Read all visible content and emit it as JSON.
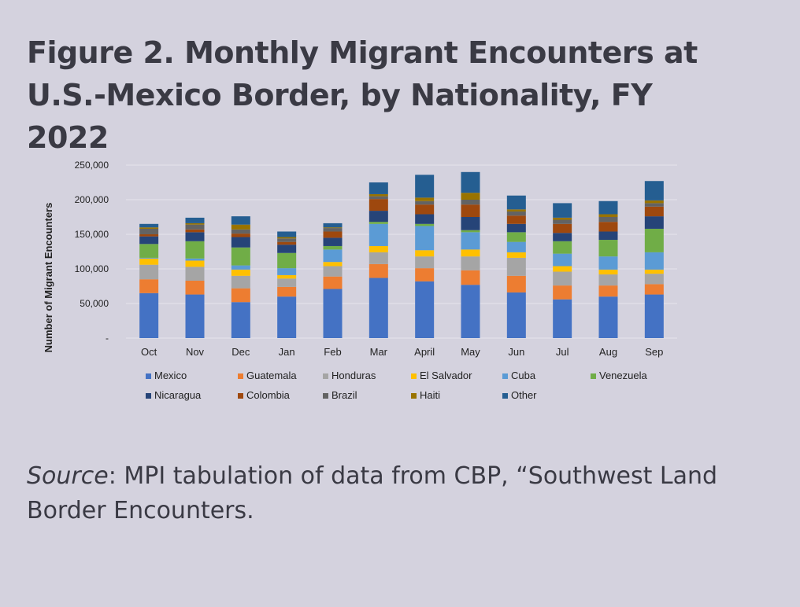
{
  "title": "Figure 2. Monthly Migrant Encounters at U.S.-Mexico Border, by Nationality, FY 2022",
  "source": {
    "label": "Source",
    "text": ": MPI tabulation of data from CBP, “Southwest Land Border Encounters."
  },
  "chart_data": {
    "type": "bar",
    "stacked": true,
    "ylabel": "Number of Migrant Encounters",
    "xlabel": "",
    "ylim": [
      0,
      250000
    ],
    "yticks": [
      0,
      50000,
      100000,
      150000,
      200000,
      250000
    ],
    "ytick_labels": [
      "-",
      "50,000",
      "100,000",
      "150,000",
      "200,000",
      "250,000"
    ],
    "grid": true,
    "legend_position": "bottom",
    "categories": [
      "Oct",
      "Nov",
      "Dec",
      "Jan",
      "Feb",
      "Mar",
      "April",
      "May",
      "Jun",
      "Jul",
      "Aug",
      "Sep"
    ],
    "series": [
      {
        "name": "Mexico",
        "color": "#4472c4",
        "values": [
          65000,
          63000,
          52000,
          60000,
          71000,
          87000,
          82000,
          77000,
          66000,
          56000,
          60000,
          63000
        ]
      },
      {
        "name": "Guatemala",
        "color": "#ed7d31",
        "values": [
          20000,
          20000,
          20000,
          14000,
          18000,
          20000,
          19000,
          21000,
          24000,
          20000,
          16000,
          15000
        ]
      },
      {
        "name": "Honduras",
        "color": "#a5a5a5",
        "values": [
          21000,
          20000,
          18000,
          12000,
          15000,
          17000,
          17000,
          20000,
          26000,
          20000,
          16000,
          15000
        ]
      },
      {
        "name": "El Salvador",
        "color": "#ffc000",
        "values": [
          9000,
          9000,
          9000,
          5000,
          6000,
          9000,
          9000,
          10000,
          8000,
          8000,
          7000,
          6000
        ]
      },
      {
        "name": "Cuba",
        "color": "#5b9bd5",
        "values": [
          1000,
          3000,
          6000,
          10000,
          18000,
          32000,
          35000,
          25000,
          15000,
          18000,
          19000,
          25000
        ]
      },
      {
        "name": "Venezuela",
        "color": "#70ad47",
        "values": [
          20000,
          25000,
          26000,
          22000,
          5000,
          3000,
          3000,
          3000,
          14000,
          18000,
          24000,
          34000
        ]
      },
      {
        "name": "Nicaragua",
        "color": "#264478",
        "values": [
          11000,
          13000,
          15000,
          12000,
          12000,
          16000,
          14000,
          19000,
          12000,
          12000,
          12000,
          18000
        ]
      },
      {
        "name": "Colombia",
        "color": "#9e480e",
        "values": [
          3000,
          4000,
          5000,
          4000,
          9000,
          17000,
          14000,
          18000,
          12000,
          13000,
          14000,
          14000
        ]
      },
      {
        "name": "Brazil",
        "color": "#636363",
        "values": [
          8000,
          7000,
          6000,
          5000,
          5000,
          4000,
          5000,
          7000,
          6000,
          6000,
          7000,
          5000
        ]
      },
      {
        "name": "Haiti",
        "color": "#997300",
        "values": [
          2000,
          2000,
          7000,
          2000,
          1000,
          3000,
          5000,
          10000,
          3000,
          3000,
          4000,
          4000
        ]
      },
      {
        "name": "Other",
        "color": "#255e91",
        "values": [
          5000,
          8000,
          12000,
          8000,
          6000,
          17000,
          33000,
          30000,
          20000,
          21000,
          19000,
          28000
        ]
      }
    ]
  }
}
